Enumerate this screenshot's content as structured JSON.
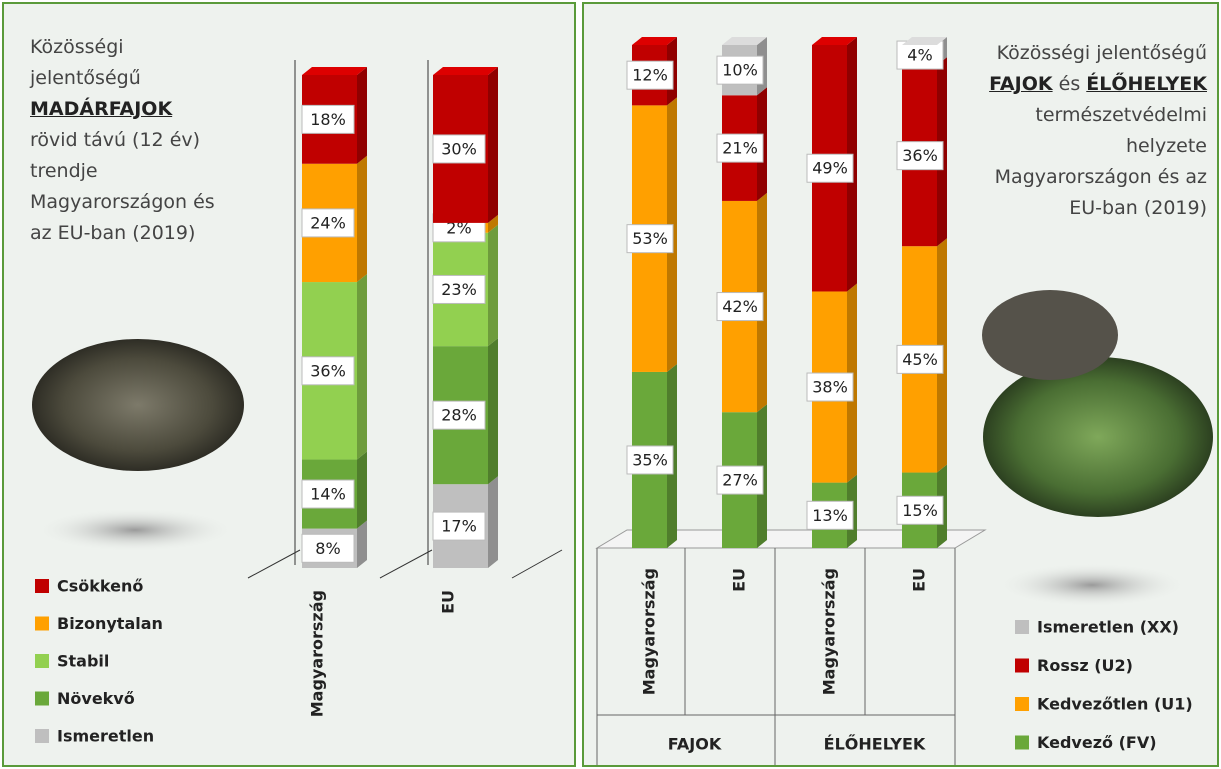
{
  "chart_data": [
    {
      "type": "bar",
      "stacked": true,
      "title_parts": [
        "Közösségi jelentőségű",
        "MADÁRFAJOK",
        "rövid távú (12 év) trendje Magyarországon és az EU-ban (2019)"
      ],
      "categories": [
        "Magyarország",
        "EU"
      ],
      "series": [
        {
          "name": "Ismeretlen",
          "color": "#bfbfbf",
          "values": [
            8,
            17
          ],
          "value_labels": [
            "8%",
            "17%"
          ]
        },
        {
          "name": "Növekvő",
          "color": "#6aa83a",
          "values": [
            14,
            28
          ],
          "value_labels": [
            "14%",
            "28%"
          ]
        },
        {
          "name": "Stabil",
          "color": "#92d050",
          "values": [
            36,
            23
          ],
          "value_labels": [
            "36%",
            "23%"
          ]
        },
        {
          "name": "Bizonytalan",
          "color": "#ffa000",
          "values": [
            24,
            2
          ],
          "value_labels": [
            "24%",
            "2%"
          ]
        },
        {
          "name": "Csökkenő",
          "color": "#c00000",
          "values": [
            18,
            30
          ],
          "value_labels": [
            "18%",
            "30%"
          ]
        }
      ]
    },
    {
      "type": "bar",
      "stacked": true,
      "title_parts": [
        "Közösségi jelentőségű",
        "FAJOK",
        "és",
        "ÉLŐHELYEK",
        "természetvédelmi helyzete Magyarországon és az EU-ban (2019)"
      ],
      "categories": [
        "Magyarország",
        "EU",
        "Magyarország",
        "EU"
      ],
      "groups": [
        "FAJOK",
        "ÉLŐHELYEK"
      ],
      "series": [
        {
          "name": "Kedvező (FV)",
          "color": "#6aa83a",
          "values": [
            35,
            27,
            13,
            15
          ],
          "value_labels": [
            "35%",
            "27%",
            "13%",
            "15%"
          ]
        },
        {
          "name": "Kedvezőtlen (U1)",
          "color": "#ffa000",
          "values": [
            53,
            42,
            38,
            45
          ],
          "value_labels": [
            "53%",
            "42%",
            "38%",
            "45%"
          ]
        },
        {
          "name": "Rossz (U2)",
          "color": "#c00000",
          "values": [
            12,
            21,
            49,
            36
          ],
          "value_labels": [
            "12%",
            "21%",
            "49%",
            "36%"
          ]
        },
        {
          "name": "Ismeretlen (XX)",
          "color": "#bfbfbf",
          "values": [
            0,
            10,
            0,
            4
          ],
          "value_labels": [
            null,
            "10%",
            null,
            "4%"
          ]
        }
      ]
    }
  ]
}
